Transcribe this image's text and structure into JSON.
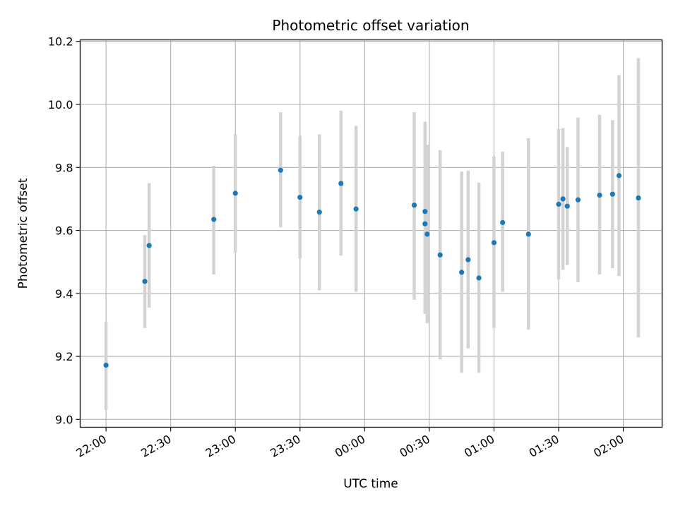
{
  "chart_data": {
    "type": "scatter",
    "title": "Photometric offset variation",
    "xlabel": "UTC time",
    "ylabel": "Photometric offset",
    "x_axis_kind": "time (HH:MM UTC)",
    "xlim": [
      "21:48",
      "02:18"
    ],
    "ylim": [
      8.975,
      10.205
    ],
    "grid": true,
    "legend": "none",
    "marker_color": "#1f77b4",
    "errorbar_color": "#d3d3d3",
    "x_ticks": [
      "22:00",
      "22:30",
      "23:00",
      "23:30",
      "00:00",
      "00:30",
      "01:00",
      "01:30",
      "02:00"
    ],
    "y_ticks": [
      "9.0",
      "9.2",
      "9.4",
      "9.6",
      "9.8",
      "10.0",
      "10.2"
    ],
    "points": [
      {
        "t": "22:00",
        "y": 9.172,
        "lo": 9.03,
        "hi": 9.31
      },
      {
        "t": "22:18",
        "y": 9.438,
        "lo": 9.29,
        "hi": 9.585
      },
      {
        "t": "22:20",
        "y": 9.552,
        "lo": 9.355,
        "hi": 9.75
      },
      {
        "t": "22:50",
        "y": 9.635,
        "lo": 9.46,
        "hi": 9.805
      },
      {
        "t": "23:00",
        "y": 9.718,
        "lo": 9.53,
        "hi": 9.905
      },
      {
        "t": "23:21",
        "y": 9.791,
        "lo": 9.61,
        "hi": 9.975
      },
      {
        "t": "23:30",
        "y": 9.705,
        "lo": 9.51,
        "hi": 9.9
      },
      {
        "t": "23:39",
        "y": 9.658,
        "lo": 9.41,
        "hi": 9.905
      },
      {
        "t": "23:49",
        "y": 9.749,
        "lo": 9.52,
        "hi": 9.98
      },
      {
        "t": "23:56",
        "y": 9.668,
        "lo": 9.405,
        "hi": 9.932
      },
      {
        "t": "00:23",
        "y": 9.68,
        "lo": 9.38,
        "hi": 9.975
      },
      {
        "t": "00:28",
        "y": 9.66,
        "lo": 9.38,
        "hi": 9.945
      },
      {
        "t": "00:28",
        "y": 9.621,
        "lo": 9.335,
        "hi": 9.905
      },
      {
        "t": "00:29",
        "y": 9.588,
        "lo": 9.305,
        "hi": 9.872
      },
      {
        "t": "00:35",
        "y": 9.522,
        "lo": 9.19,
        "hi": 9.855
      },
      {
        "t": "00:45",
        "y": 9.467,
        "lo": 9.148,
        "hi": 9.787
      },
      {
        "t": "00:48",
        "y": 9.507,
        "lo": 9.225,
        "hi": 9.79
      },
      {
        "t": "00:53",
        "y": 9.449,
        "lo": 9.148,
        "hi": 9.752
      },
      {
        "t": "01:00",
        "y": 9.561,
        "lo": 9.29,
        "hi": 9.835
      },
      {
        "t": "01:04",
        "y": 9.625,
        "lo": 9.405,
        "hi": 9.85
      },
      {
        "t": "01:16",
        "y": 9.588,
        "lo": 9.285,
        "hi": 9.893
      },
      {
        "t": "01:30",
        "y": 9.683,
        "lo": 9.445,
        "hi": 9.922
      },
      {
        "t": "01:32",
        "y": 9.7,
        "lo": 9.475,
        "hi": 9.925
      },
      {
        "t": "01:34",
        "y": 9.677,
        "lo": 9.49,
        "hi": 9.865
      },
      {
        "t": "01:39",
        "y": 9.697,
        "lo": 9.435,
        "hi": 9.958
      },
      {
        "t": "01:49",
        "y": 9.712,
        "lo": 9.46,
        "hi": 9.967
      },
      {
        "t": "01:55",
        "y": 9.715,
        "lo": 9.48,
        "hi": 9.95
      },
      {
        "t": "01:58",
        "y": 9.774,
        "lo": 9.455,
        "hi": 10.093
      },
      {
        "t": "02:07",
        "y": 9.703,
        "lo": 9.26,
        "hi": 10.147
      }
    ]
  }
}
